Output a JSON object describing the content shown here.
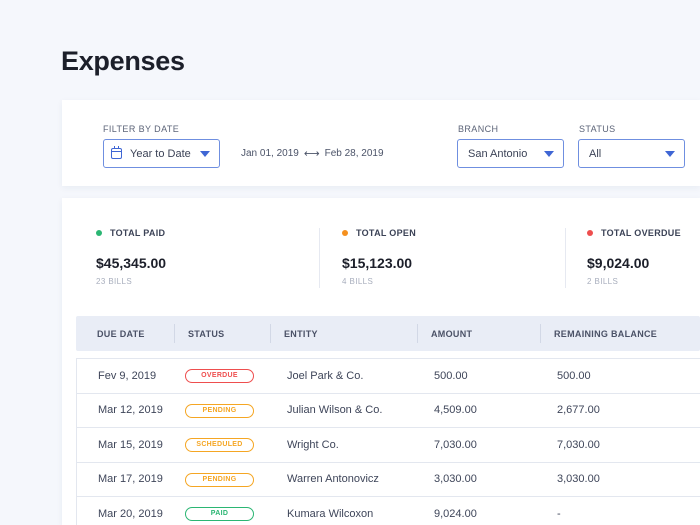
{
  "page": {
    "title": "Expenses"
  },
  "filters": {
    "date_label": "FILTER BY DATE",
    "date_value": "Year to Date",
    "range_start": "Jan 01, 2019",
    "range_arrow": "⟷",
    "range_end": "Feb 28, 2019",
    "branch_label": "BRANCH",
    "branch_value": "San Antonio",
    "status_label": "STATUS",
    "status_value": "All"
  },
  "stats": [
    {
      "label": "TOTAL PAID",
      "value": "$45,345.00",
      "sub": "23 BILLS",
      "color": "#2bb673"
    },
    {
      "label": "TOTAL OPEN",
      "value": "$15,123.00",
      "sub": "4 BILLS",
      "color": "#f5901e"
    },
    {
      "label": "TOTAL OVERDUE",
      "value": "$9,024.00",
      "sub": "2 BILLS",
      "color": "#ee4e4e"
    }
  ],
  "table": {
    "columns": [
      "DUE DATE",
      "STATUS",
      "ENTITY",
      "AMOUNT",
      "REMAINING BALANCE"
    ],
    "rows": [
      {
        "due": "Fev 9, 2019",
        "status": "OVERDUE",
        "status_color": "#ee4e4e",
        "entity": "Joel Park & Co.",
        "amount": "500.00",
        "balance": "500.00"
      },
      {
        "due": "Mar 12, 2019",
        "status": "PENDING",
        "status_color": "#f5a623",
        "entity": "Julian Wilson & Co.",
        "amount": "4,509.00",
        "balance": "2,677.00"
      },
      {
        "due": "Mar 15, 2019",
        "status": "SCHEDULED",
        "status_color": "#f5a623",
        "entity": "Wright Co.",
        "amount": "7,030.00",
        "balance": "7,030.00"
      },
      {
        "due": "Mar 17, 2019",
        "status": "PENDING",
        "status_color": "#f5a623",
        "entity": "Warren Antonovicz",
        "amount": "3,030.00",
        "balance": "3,030.00"
      },
      {
        "due": "Mar 20, 2019",
        "status": "PAID",
        "status_color": "#2bb673",
        "entity": "Kumara Wilcoxon",
        "amount": "9,024.00",
        "balance": "-"
      }
    ]
  }
}
